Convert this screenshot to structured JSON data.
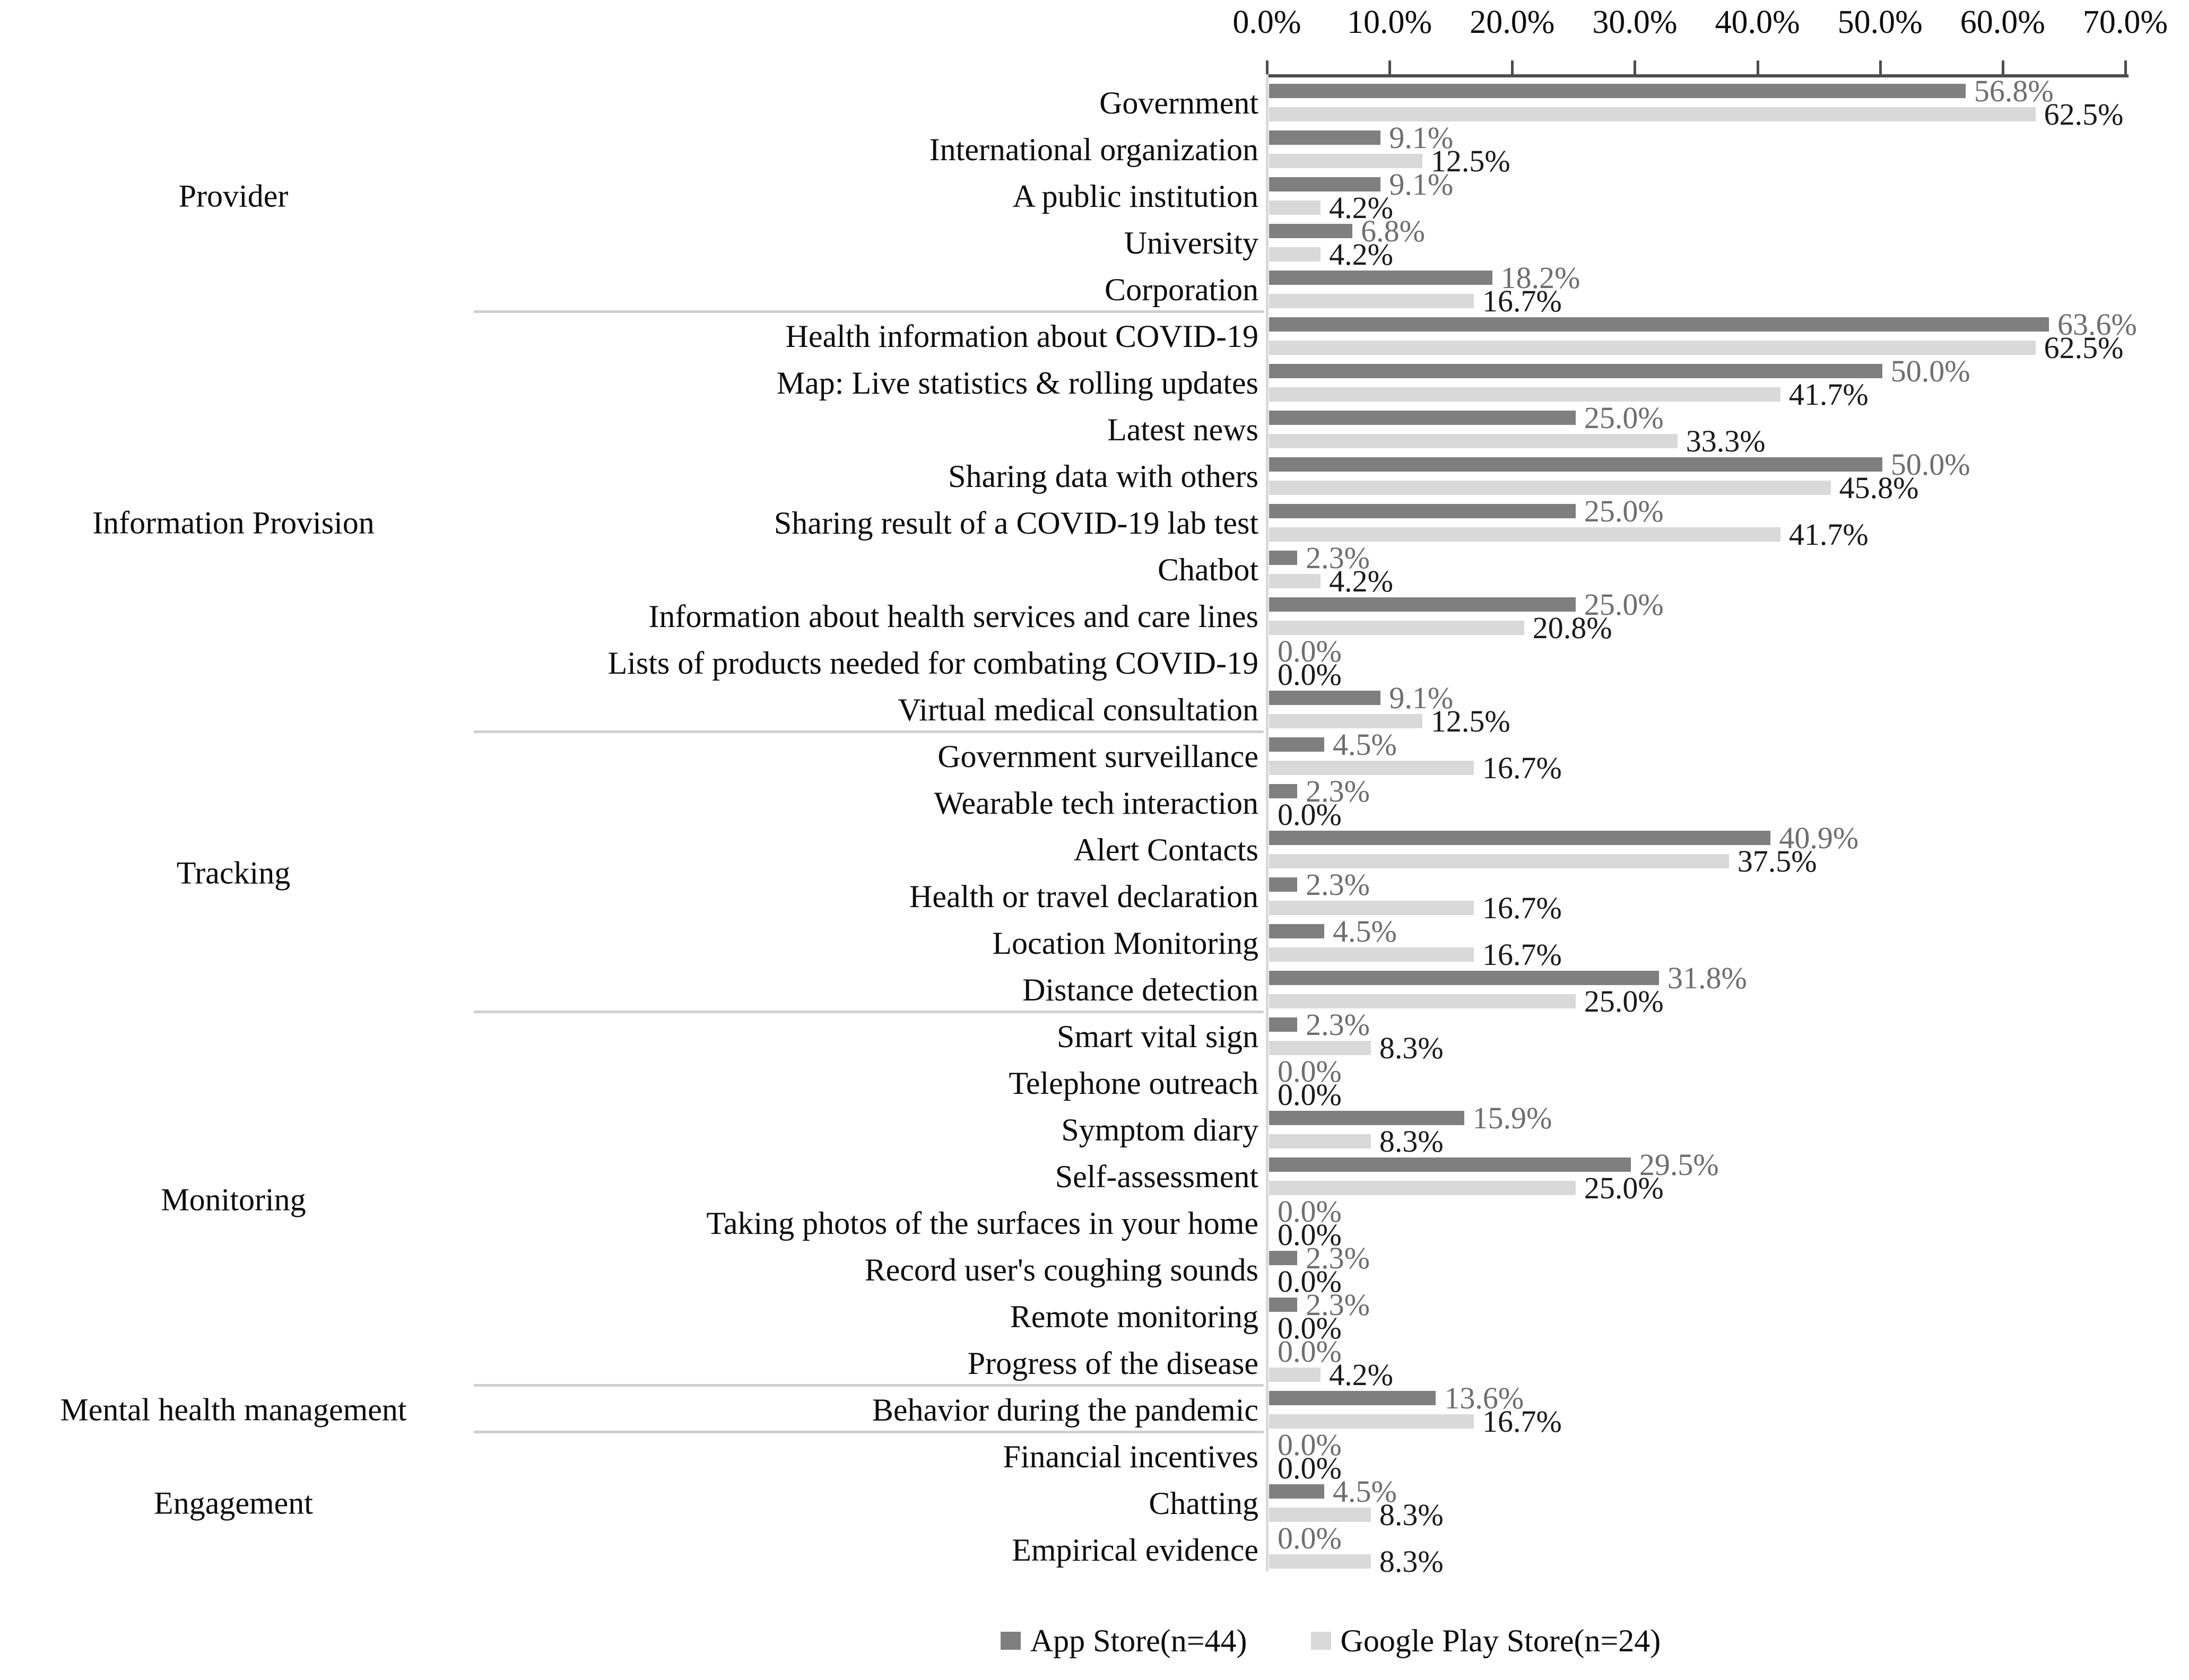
{
  "chart_data": {
    "type": "bar",
    "orientation": "horizontal",
    "title": "",
    "xlabel": "",
    "ylabel": "",
    "axis_ticks": [
      "0.0%",
      "10.0%",
      "20.0%",
      "30.0%",
      "40.0%",
      "50.0%",
      "60.0%",
      "70.0%"
    ],
    "xlim": [
      0,
      70
    ],
    "grid": false,
    "legend_position": "bottom",
    "value_label_format": "0.0%",
    "series_names": [
      "App Store(n=44)",
      "Google Play Store(n=24)"
    ],
    "colors": {
      "app_bar": "#7f7f7f",
      "play_bar": "#d9d9d9",
      "app_value_label": "#6e6e6e",
      "play_value_label": "#1a1a1a",
      "axis": "#4d4d4d",
      "divider": "#cfcfcf",
      "text": "#0d0d0d"
    },
    "groups": [
      {
        "label": "Provider",
        "items": [
          {
            "label": "Government",
            "app": 56.8,
            "play": 62.5
          },
          {
            "label": "International organization",
            "app": 9.1,
            "play": 12.5
          },
          {
            "label": "A public institution",
            "app": 9.1,
            "play": 4.2
          },
          {
            "label": "University",
            "app": 6.8,
            "play": 4.2
          },
          {
            "label": "Corporation",
            "app": 18.2,
            "play": 16.7
          }
        ]
      },
      {
        "label": "Information Provision",
        "items": [
          {
            "label": "Health information about COVID-19",
            "app": 63.6,
            "play": 62.5
          },
          {
            "label": "Map: Live statistics & rolling updates",
            "app": 50.0,
            "play": 41.7
          },
          {
            "label": "Latest news",
            "app": 25.0,
            "play": 33.3
          },
          {
            "label": "Sharing data with others",
            "app": 50.0,
            "play": 45.8
          },
          {
            "label": "Sharing result of a COVID-19 lab test",
            "app": 25.0,
            "play": 41.7
          },
          {
            "label": "Chatbot",
            "app": 2.3,
            "play": 4.2
          },
          {
            "label": "Information about health services and care lines",
            "app": 25.0,
            "play": 20.8
          },
          {
            "label": "Lists of products needed for combating COVID-19",
            "app": 0.0,
            "play": 0.0
          },
          {
            "label": "Virtual medical consultation",
            "app": 9.1,
            "play": 12.5
          }
        ]
      },
      {
        "label": "Tracking",
        "items": [
          {
            "label": "Government surveillance",
            "app": 4.5,
            "play": 16.7
          },
          {
            "label": "Wearable tech interaction",
            "app": 2.3,
            "play": 0.0
          },
          {
            "label": "Alert Contacts",
            "app": 40.9,
            "play": 37.5
          },
          {
            "label": "Health or travel declaration",
            "app": 2.3,
            "play": 16.7
          },
          {
            "label": "Location Monitoring",
            "app": 4.5,
            "play": 16.7
          },
          {
            "label": "Distance detection",
            "app": 31.8,
            "play": 25.0
          }
        ]
      },
      {
        "label": "Monitoring",
        "items": [
          {
            "label": "Smart vital sign",
            "app": 2.3,
            "play": 8.3
          },
          {
            "label": "Telephone outreach",
            "app": 0.0,
            "play": 0.0
          },
          {
            "label": "Symptom diary",
            "app": 15.9,
            "play": 8.3
          },
          {
            "label": "Self-assessment",
            "app": 29.5,
            "play": 25.0
          },
          {
            "label": "Taking photos of the surfaces in your home",
            "app": 0.0,
            "play": 0.0
          },
          {
            "label": "Record user's coughing sounds",
            "app": 2.3,
            "play": 0.0
          },
          {
            "label": "Remote monitoring",
            "app": 2.3,
            "play": 0.0
          },
          {
            "label": "Progress of the disease",
            "app": 0.0,
            "play": 4.2
          }
        ]
      },
      {
        "label": "Mental health management",
        "items": [
          {
            "label": "Behavior during the pandemic",
            "app": 13.6,
            "play": 16.7
          }
        ]
      },
      {
        "label": "Engagement",
        "items": [
          {
            "label": "Financial incentives",
            "app": 0.0,
            "play": 0.0
          },
          {
            "label": "Chatting",
            "app": 4.5,
            "play": 8.3
          },
          {
            "label": "Empirical evidence",
            "app": 0.0,
            "play": 8.3
          }
        ]
      }
    ],
    "legend": [
      {
        "label": "App Store(n=44)",
        "color": "#7f7f7f"
      },
      {
        "label": "Google Play Store(n=24)",
        "color": "#d9d9d9"
      }
    ]
  }
}
